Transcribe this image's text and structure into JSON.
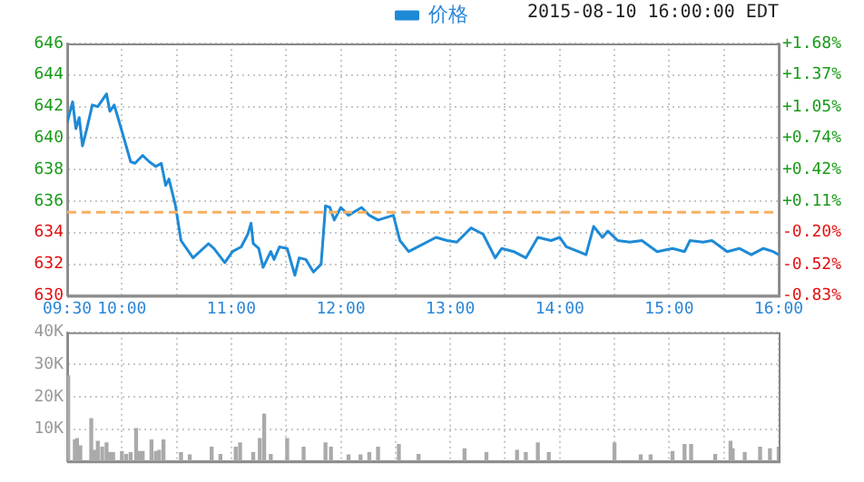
{
  "chart_data": [
    {
      "type": "line",
      "legend": "top",
      "grid": true,
      "marker": "none",
      "line_style": "solid",
      "annotations": [
        "2015-08-10 16:00:00 EDT"
      ],
      "xlim": [
        9.5,
        16
      ],
      "xticks": [
        {
          "value": 9.5,
          "label": "09:30"
        },
        {
          "value": 10,
          "label": "10:00"
        },
        {
          "value": 10.5,
          "label": null
        },
        {
          "value": 11,
          "label": "11:00"
        },
        {
          "value": 11.5,
          "label": null
        },
        {
          "value": 12,
          "label": "12:00"
        },
        {
          "value": 12.5,
          "label": null
        },
        {
          "value": 13,
          "label": "13:00"
        },
        {
          "value": 13.5,
          "label": null
        },
        {
          "value": 14,
          "label": "14:00"
        },
        {
          "value": 14.5,
          "label": null
        },
        {
          "value": 15,
          "label": "15:00"
        },
        {
          "value": 15.5,
          "label": null
        },
        {
          "value": 16,
          "label": "16:00"
        }
      ],
      "ylim": [
        630,
        646
      ],
      "yticks": [
        630,
        632,
        634,
        636,
        638,
        640,
        642,
        644,
        646
      ],
      "y2lim": [
        -0.83,
        1.68
      ],
      "y2ticks": [
        {
          "value": -0.83,
          "label": "-0.83%"
        },
        {
          "value": -0.52,
          "label": "-0.52%"
        },
        {
          "value": -0.2,
          "label": "-0.20%"
        },
        {
          "value": 0.11,
          "label": "+0.11%"
        },
        {
          "value": 0.42,
          "label": "+0.42%"
        },
        {
          "value": 0.74,
          "label": "+0.74%"
        },
        {
          "value": 1.05,
          "label": "+1.05%"
        },
        {
          "value": 1.37,
          "label": "+1.37%"
        },
        {
          "value": 1.68,
          "label": "+1.68%"
        }
      ],
      "ref_lines": [
        {
          "axis": "y",
          "value": 635.3,
          "color": "#f7b060",
          "line_style": "dashed"
        }
      ],
      "series": [
        {
          "name": "价格",
          "color": "#1e8ad6",
          "x": [
            9.5,
            9.55,
            9.58,
            9.61,
            9.64,
            9.68,
            9.73,
            9.78,
            9.86,
            9.89,
            9.93,
            10.01,
            10.08,
            10.12,
            10.19,
            10.25,
            10.31,
            10.36,
            10.4,
            10.43,
            10.49,
            10.54,
            10.65,
            10.79,
            10.84,
            10.94,
            11.01,
            11.09,
            11.15,
            11.18,
            11.2,
            11.25,
            11.29,
            11.36,
            11.39,
            11.44,
            11.51,
            11.58,
            11.62,
            11.68,
            11.75,
            11.82,
            11.86,
            11.9,
            11.94,
            12,
            12.07,
            12.19,
            12.26,
            12.34,
            12.48,
            12.54,
            12.62,
            12.87,
            12.97,
            13.06,
            13.19,
            13.3,
            13.41,
            13.47,
            13.58,
            13.69,
            13.8,
            13.92,
            14,
            14.06,
            14.17,
            14.24,
            14.31,
            14.39,
            14.44,
            14.53,
            14.64,
            14.75,
            14.89,
            15.03,
            15.14,
            15.19,
            15.31,
            15.39,
            15.53,
            15.64,
            15.75,
            15.86,
            15.95,
            16
          ],
          "values": [
            641,
            642.3,
            640.6,
            641.3,
            639.5,
            640.6,
            642.1,
            642,
            642.8,
            641.7,
            642.1,
            640.2,
            638.5,
            638.4,
            638.9,
            638.5,
            638.2,
            638.4,
            637,
            637.4,
            635.7,
            633.5,
            632.4,
            633.3,
            633,
            632.1,
            632.8,
            633.1,
            633.9,
            634.6,
            633.3,
            633,
            631.8,
            632.8,
            632.3,
            633.1,
            633,
            631.3,
            632.4,
            632.3,
            631.5,
            632,
            635.7,
            635.6,
            634.8,
            635.6,
            635.1,
            635.6,
            635.1,
            634.8,
            635.1,
            633.5,
            632.8,
            633.7,
            633.5,
            633.4,
            634.3,
            633.9,
            632.4,
            633,
            632.8,
            632.4,
            633.7,
            633.5,
            633.7,
            633.1,
            632.8,
            632.6,
            634.4,
            633.7,
            634.1,
            633.5,
            633.4,
            633.5,
            632.8,
            633,
            632.8,
            633.5,
            633.4,
            633.5,
            632.8,
            633,
            632.6,
            633,
            632.8,
            632.6
          ]
        }
      ]
    },
    {
      "type": "bar",
      "grid": true,
      "tick_labels": "y",
      "xlim": [
        9.5,
        16
      ],
      "xticks": [
        {
          "value": 9.5,
          "label": null
        },
        {
          "value": 10,
          "label": null
        },
        {
          "value": 10.5,
          "label": null
        },
        {
          "value": 11,
          "label": null
        },
        {
          "value": 11.5,
          "label": null
        },
        {
          "value": 12,
          "label": null
        },
        {
          "value": 12.5,
          "label": null
        },
        {
          "value": 13,
          "label": null
        },
        {
          "value": 13.5,
          "label": null
        },
        {
          "value": 14,
          "label": null
        },
        {
          "value": 14.5,
          "label": null
        },
        {
          "value": 15,
          "label": null
        },
        {
          "value": 15.5,
          "label": null
        },
        {
          "value": 16,
          "label": null
        }
      ],
      "ylim": [
        0,
        40000
      ],
      "yticks": [
        {
          "value": 0,
          "label": null
        },
        {
          "value": 10000,
          "label": "10K"
        },
        {
          "value": 20000,
          "label": "20K"
        },
        {
          "value": 30000,
          "label": "30K"
        },
        {
          "value": 40000,
          "label": "40K"
        }
      ],
      "series": [
        {
          "color": "#aaaaaa",
          "x": [
            9.51,
            9.57,
            9.59,
            9.62,
            9.72,
            9.75,
            9.78,
            9.82,
            9.86,
            9.89,
            9.92,
            10,
            10.04,
            10.08,
            10.13,
            10.16,
            10.19,
            10.27,
            10.31,
            10.34,
            10.38,
            10.54,
            10.62,
            10.82,
            10.9,
            11.04,
            11.08,
            11.2,
            11.26,
            11.3,
            11.36,
            11.51,
            11.66,
            11.86,
            11.91,
            12.07,
            12.18,
            12.26,
            12.34,
            12.53,
            12.71,
            13.13,
            13.33,
            13.61,
            13.69,
            13.8,
            13.9,
            14.5,
            14.74,
            14.83,
            15.03,
            15.14,
            15.2,
            15.42,
            15.56,
            15.58,
            15.69,
            15.83,
            15.92,
            16
          ],
          "values": [
            26500,
            6600,
            7000,
            4800,
            13200,
            3400,
            6200,
            4400,
            5700,
            2700,
            2700,
            3000,
            2100,
            2700,
            10100,
            3000,
            3000,
            6600,
            3000,
            3400,
            6600,
            2700,
            2000,
            4400,
            2100,
            4400,
            5700,
            2700,
            7000,
            14600,
            2100,
            7000,
            4400,
            5700,
            4400,
            2000,
            2000,
            2700,
            4400,
            5200,
            2100,
            3900,
            2700,
            3400,
            2700,
            5700,
            2700,
            5700,
            2000,
            2000,
            3000,
            5200,
            5200,
            2100,
            6200,
            3900,
            2700,
            4400,
            3900,
            4400
          ]
        }
      ]
    }
  ]
}
